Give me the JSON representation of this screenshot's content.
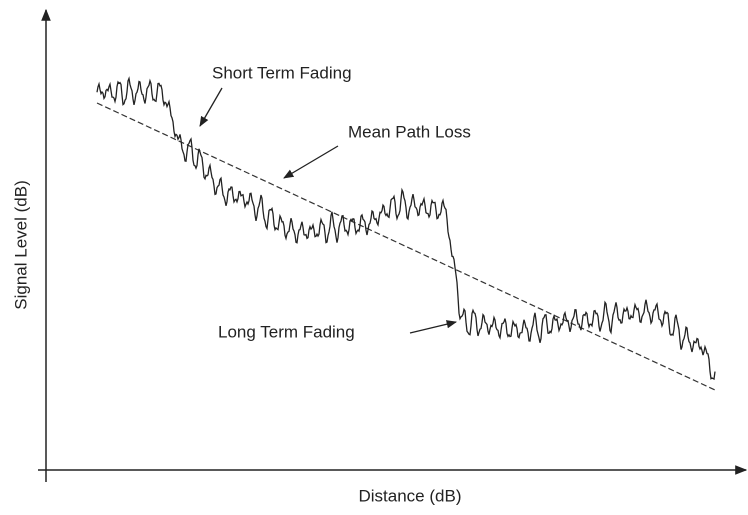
{
  "axes": {
    "x_label": "Distance (dB)",
    "y_label": "Signal Level (dB)"
  },
  "annotations": {
    "short_term": "Short Term Fading",
    "mean_path": "Mean Path Loss",
    "long_term": "Long Term Fading"
  }
}
